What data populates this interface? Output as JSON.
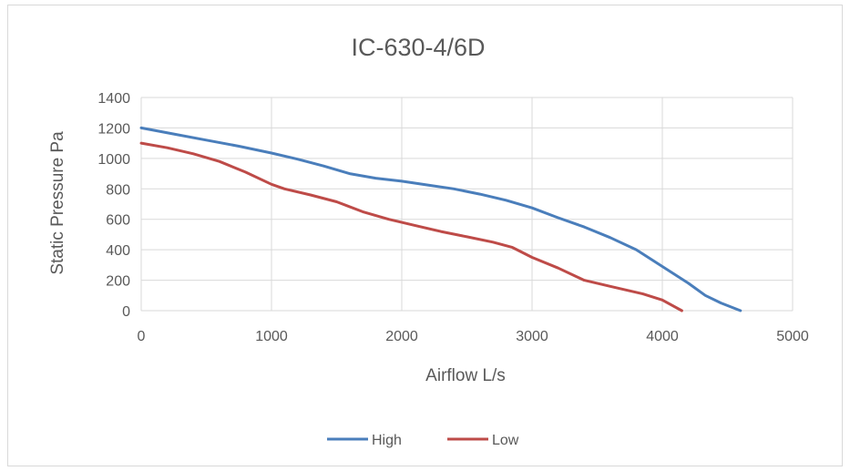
{
  "chart_data": {
    "type": "line",
    "title": "IC-630-4/6D",
    "xlabel": "Airflow L/s",
    "ylabel": "Static Pressure Pa",
    "xlim": [
      0,
      5000
    ],
    "ylim": [
      0,
      1400
    ],
    "x_ticks": [
      "0",
      "1000",
      "2000",
      "3000",
      "4000",
      "5000"
    ],
    "y_ticks": [
      "0",
      "200",
      "400",
      "600",
      "800",
      "1000",
      "1200",
      "1400"
    ],
    "grid": true,
    "legend_position": "bottom",
    "series": [
      {
        "name": "High",
        "color": "#4a7ebb",
        "points": [
          [
            0,
            1200
          ],
          [
            250,
            1160
          ],
          [
            500,
            1120
          ],
          [
            750,
            1080
          ],
          [
            1000,
            1035
          ],
          [
            1200,
            995
          ],
          [
            1400,
            950
          ],
          [
            1600,
            900
          ],
          [
            1800,
            870
          ],
          [
            2000,
            850
          ],
          [
            2200,
            825
          ],
          [
            2400,
            800
          ],
          [
            2600,
            765
          ],
          [
            2800,
            725
          ],
          [
            3000,
            675
          ],
          [
            3200,
            610
          ],
          [
            3400,
            550
          ],
          [
            3600,
            480
          ],
          [
            3800,
            400
          ],
          [
            4000,
            290
          ],
          [
            4200,
            180
          ],
          [
            4330,
            100
          ],
          [
            4450,
            50
          ],
          [
            4600,
            0
          ]
        ]
      },
      {
        "name": "Low",
        "color": "#be4b48",
        "points": [
          [
            0,
            1100
          ],
          [
            200,
            1070
          ],
          [
            400,
            1030
          ],
          [
            600,
            980
          ],
          [
            800,
            910
          ],
          [
            1000,
            830
          ],
          [
            1100,
            800
          ],
          [
            1300,
            760
          ],
          [
            1500,
            715
          ],
          [
            1700,
            650
          ],
          [
            1900,
            600
          ],
          [
            2100,
            560
          ],
          [
            2300,
            520
          ],
          [
            2500,
            485
          ],
          [
            2700,
            450
          ],
          [
            2850,
            415
          ],
          [
            3000,
            350
          ],
          [
            3200,
            280
          ],
          [
            3400,
            200
          ],
          [
            3600,
            160
          ],
          [
            3850,
            110
          ],
          [
            4000,
            70
          ],
          [
            4150,
            0
          ]
        ]
      }
    ]
  }
}
